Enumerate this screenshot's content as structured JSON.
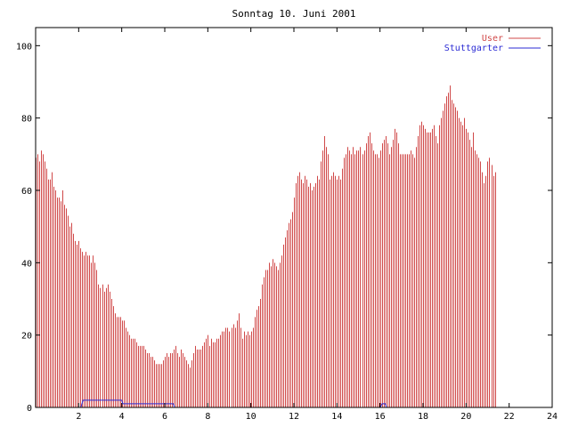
{
  "chart_data": {
    "type": "bar",
    "title": "Sonntag 10. Juni 2001",
    "xlabel": "",
    "ylabel": "",
    "xlim": [
      0,
      24
    ],
    "ylim": [
      0,
      105
    ],
    "x_ticks": [
      2,
      4,
      6,
      8,
      10,
      12,
      14,
      16,
      18,
      20,
      22,
      24
    ],
    "y_ticks": [
      0,
      20,
      40,
      60,
      80,
      100
    ],
    "legend_position": "top-right",
    "series": [
      {
        "name": "User",
        "style": "impulses",
        "color": "#d04848",
        "x_start": 0,
        "x_step": 0.08333,
        "values": [
          69,
          70,
          68,
          71,
          70,
          68,
          66,
          63,
          63,
          65,
          61,
          60,
          58,
          58,
          57,
          60,
          56,
          55,
          53,
          50,
          51,
          48,
          46,
          45,
          46,
          44,
          43,
          42,
          43,
          42,
          42,
          40,
          42,
          40,
          38,
          34,
          33,
          34,
          32,
          33,
          34,
          32,
          30,
          28,
          26,
          25,
          25,
          25,
          24,
          24,
          22,
          21,
          20,
          19,
          19,
          19,
          18,
          17,
          17,
          17,
          17,
          16,
          15,
          15,
          14,
          14,
          13,
          12,
          12,
          12,
          12,
          13,
          14,
          15,
          14,
          15,
          15,
          16,
          17,
          15,
          14,
          16,
          15,
          14,
          13,
          12,
          11,
          13,
          15,
          17,
          16,
          16,
          16,
          17,
          18,
          19,
          20,
          17,
          19,
          18,
          18,
          19,
          19,
          20,
          21,
          21,
          22,
          22,
          21,
          22,
          23,
          22,
          24,
          26,
          22,
          19,
          21,
          20,
          21,
          20,
          21,
          22,
          25,
          27,
          28,
          30,
          34,
          36,
          38,
          38,
          40,
          39,
          41,
          40,
          39,
          38,
          40,
          42,
          45,
          47,
          49,
          51,
          52,
          54,
          58,
          62,
          64,
          65,
          63,
          62,
          64,
          63,
          61,
          62,
          60,
          61,
          62,
          64,
          63,
          68,
          71,
          75,
          72,
          70,
          63,
          64,
          65,
          64,
          63,
          64,
          63,
          66,
          69,
          70,
          72,
          71,
          70,
          72,
          70,
          71,
          71,
          72,
          70,
          71,
          73,
          75,
          76,
          73,
          71,
          70,
          70,
          69,
          71,
          73,
          74,
          75,
          73,
          70,
          72,
          74,
          77,
          76,
          73,
          70,
          70,
          70,
          70,
          70,
          70,
          71,
          70,
          69,
          72,
          75,
          78,
          79,
          78,
          77,
          76,
          76,
          76,
          77,
          78,
          75,
          73,
          78,
          80,
          82,
          84,
          86,
          87,
          89,
          85,
          84,
          83,
          82,
          80,
          79,
          78,
          80,
          77,
          76,
          74,
          72,
          76,
          71,
          70,
          69,
          68,
          65,
          62,
          64,
          68,
          69,
          67,
          64,
          65
        ]
      },
      {
        "name": "Stuttgarter",
        "style": "line",
        "color": "#2b2bd4",
        "points": [
          [
            0,
            0
          ],
          [
            2.1,
            0
          ],
          [
            2.2,
            2
          ],
          [
            4.0,
            2
          ],
          [
            4.05,
            1
          ],
          [
            6.4,
            1
          ],
          [
            6.45,
            0
          ],
          [
            16.0,
            0
          ],
          [
            16.1,
            1
          ],
          [
            16.25,
            1
          ],
          [
            16.3,
            0
          ],
          [
            24,
            0
          ]
        ]
      }
    ]
  }
}
